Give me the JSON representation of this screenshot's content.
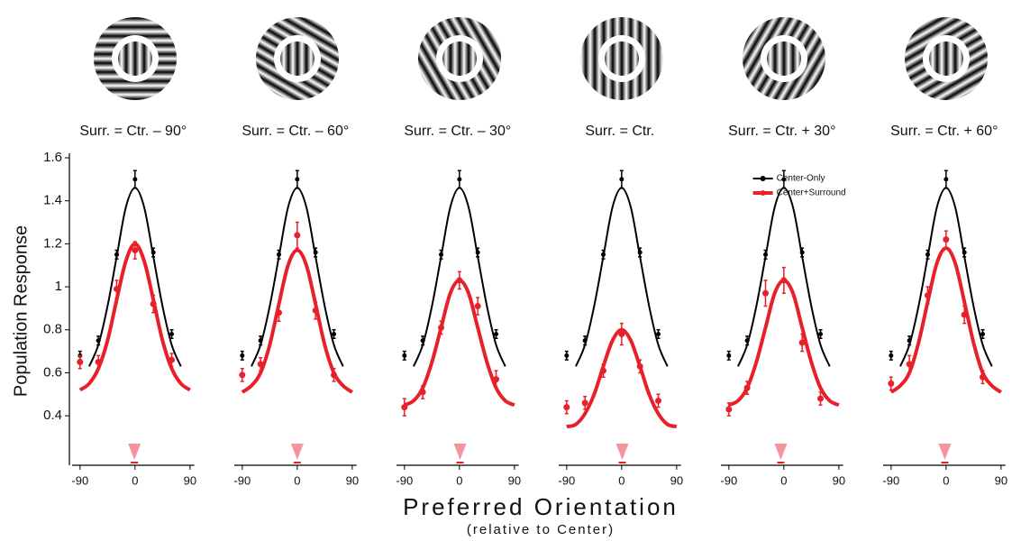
{
  "chart_data": [
    {
      "type": "line",
      "title": "Surr. = Ctr. – 90°",
      "x": [
        -90,
        -60,
        -30,
        0,
        30,
        60
      ],
      "xlim": [
        -103,
        97
      ],
      "xticks": [
        -90,
        0,
        90
      ],
      "ylim": [
        0.17,
        1.6
      ],
      "yticks": [
        0.4,
        0.6,
        0.8,
        1,
        1.2,
        1.4,
        1.6
      ],
      "series": [
        {
          "color": "#000000",
          "values": [
            0.68,
            0.75,
            1.15,
            1.5,
            1.16,
            0.78
          ],
          "errors": [
            0.02,
            0.02,
            0.02,
            0.04,
            0.02,
            0.02
          ],
          "fit_x": [
            -75,
            -60,
            -45,
            -30,
            -15,
            0,
            15,
            30,
            45,
            60,
            75
          ],
          "fit_values": [
            0.63,
            0.73,
            0.91,
            1.14,
            1.37,
            1.46,
            1.37,
            1.14,
            0.91,
            0.73,
            0.63
          ]
        },
        {
          "color": "#e8202a",
          "values": [
            0.65,
            0.65,
            0.99,
            1.17,
            0.92,
            0.66
          ],
          "errors": [
            0.03,
            0.03,
            0.04,
            0.04,
            0.04,
            0.03
          ],
          "fit_x": [
            -90,
            -75,
            -60,
            -45,
            -30,
            -15,
            0,
            15,
            30,
            45,
            60,
            75,
            90
          ],
          "fit_values": [
            0.52,
            0.55,
            0.62,
            0.75,
            0.94,
            1.12,
            1.2,
            1.12,
            0.94,
            0.75,
            0.62,
            0.55,
            0.52
          ]
        }
      ],
      "peak_marker": -1,
      "peak_color": "#f4949c"
    },
    {
      "type": "line",
      "title": "Surr. = Ctr. – 60°",
      "x": [
        -90,
        -60,
        -30,
        0,
        30,
        60
      ],
      "xlim": [
        -103,
        97
      ],
      "xticks": [
        -90,
        0,
        90
      ],
      "ylim": [
        0.17,
        1.6
      ],
      "series": [
        {
          "color": "#000000",
          "values": [
            0.68,
            0.75,
            1.15,
            1.5,
            1.16,
            0.78
          ],
          "errors": [
            0.02,
            0.02,
            0.02,
            0.04,
            0.02,
            0.02
          ],
          "fit_x": [
            -75,
            -60,
            -45,
            -30,
            -15,
            0,
            15,
            30,
            45,
            60,
            75
          ],
          "fit_values": [
            0.63,
            0.73,
            0.91,
            1.14,
            1.37,
            1.46,
            1.37,
            1.14,
            0.91,
            0.73,
            0.63
          ]
        },
        {
          "color": "#e8202a",
          "values": [
            0.59,
            0.64,
            0.88,
            1.24,
            0.89,
            0.59
          ],
          "errors": [
            0.03,
            0.03,
            0.04,
            0.06,
            0.04,
            0.03
          ],
          "fit_x": [
            -90,
            -75,
            -60,
            -45,
            -30,
            -15,
            0,
            15,
            30,
            45,
            60,
            75,
            90
          ],
          "fit_values": [
            0.51,
            0.54,
            0.6,
            0.73,
            0.92,
            1.1,
            1.17,
            1.1,
            0.92,
            0.73,
            0.6,
            0.54,
            0.51
          ]
        }
      ],
      "peak_marker": 0,
      "peak_color": "#f4949c"
    },
    {
      "type": "line",
      "title": "Surr. = Ctr. – 30°",
      "x": [
        -90,
        -60,
        -30,
        0,
        30,
        60
      ],
      "xlim": [
        -103,
        97
      ],
      "xticks": [
        -90,
        0,
        90
      ],
      "ylim": [
        0.17,
        1.6
      ],
      "series": [
        {
          "color": "#000000",
          "values": [
            0.68,
            0.75,
            1.15,
            1.5,
            1.16,
            0.78
          ],
          "errors": [
            0.02,
            0.02,
            0.02,
            0.04,
            0.02,
            0.02
          ],
          "fit_x": [
            -75,
            -60,
            -45,
            -30,
            -15,
            0,
            15,
            30,
            45,
            60,
            75
          ],
          "fit_values": [
            0.63,
            0.73,
            0.91,
            1.14,
            1.37,
            1.46,
            1.37,
            1.14,
            0.91,
            0.73,
            0.63
          ]
        },
        {
          "color": "#e8202a",
          "values": [
            0.44,
            0.51,
            0.81,
            1.03,
            0.91,
            0.57
          ],
          "errors": [
            0.04,
            0.03,
            0.03,
            0.04,
            0.04,
            0.04
          ],
          "fit_x": [
            -90,
            -75,
            -60,
            -45,
            -30,
            -15,
            0,
            15,
            30,
            45,
            60,
            75,
            90
          ],
          "fit_values": [
            0.45,
            0.47,
            0.53,
            0.65,
            0.81,
            0.97,
            1.03,
            0.97,
            0.81,
            0.65,
            0.53,
            0.47,
            0.45
          ]
        }
      ],
      "peak_marker": 1,
      "peak_color": "#f4949c"
    },
    {
      "type": "line",
      "title": "Surr. = Ctr.",
      "x": [
        -90,
        -60,
        -30,
        0,
        30,
        60
      ],
      "xlim": [
        -103,
        97
      ],
      "xticks": [
        -90,
        0,
        90
      ],
      "ylim": [
        0.17,
        1.6
      ],
      "series": [
        {
          "color": "#000000",
          "values": [
            0.68,
            0.75,
            1.15,
            1.5,
            1.16,
            0.78
          ],
          "errors": [
            0.02,
            0.02,
            0.02,
            0.04,
            0.02,
            0.02
          ],
          "fit_x": [
            -75,
            -60,
            -45,
            -30,
            -15,
            0,
            15,
            30,
            45,
            60,
            75
          ],
          "fit_values": [
            0.63,
            0.73,
            0.91,
            1.14,
            1.37,
            1.46,
            1.37,
            1.14,
            0.91,
            0.73,
            0.63
          ]
        },
        {
          "color": "#e8202a",
          "values": [
            0.44,
            0.46,
            0.61,
            0.78,
            0.63,
            0.47
          ],
          "errors": [
            0.03,
            0.03,
            0.03,
            0.05,
            0.03,
            0.03
          ],
          "fit_x": [
            -90,
            -75,
            -60,
            -45,
            -30,
            -15,
            0,
            15,
            30,
            45,
            60,
            75,
            90
          ],
          "fit_values": [
            0.35,
            0.36,
            0.41,
            0.5,
            0.63,
            0.75,
            0.8,
            0.75,
            0.63,
            0.5,
            0.41,
            0.36,
            0.35
          ]
        }
      ],
      "peak_marker": 1,
      "peak_color": "#f4949c"
    },
    {
      "type": "line",
      "title": "Surr. = Ctr. + 30°",
      "x": [
        -90,
        -60,
        -30,
        0,
        30,
        60
      ],
      "xlim": [
        -103,
        97
      ],
      "xticks": [
        -90,
        0,
        90
      ],
      "ylim": [
        0.17,
        1.6
      ],
      "legend": "upper right",
      "series": [
        {
          "name": "Center-Only",
          "color": "#000000",
          "values": [
            0.68,
            0.75,
            1.15,
            1.5,
            1.16,
            0.78
          ],
          "errors": [
            0.02,
            0.02,
            0.02,
            0.04,
            0.02,
            0.02
          ],
          "fit_x": [
            -75,
            -60,
            -45,
            -30,
            -15,
            0,
            15,
            30,
            45,
            60,
            75
          ],
          "fit_values": [
            0.63,
            0.73,
            0.91,
            1.14,
            1.37,
            1.46,
            1.37,
            1.14,
            0.91,
            0.73,
            0.63
          ]
        },
        {
          "name": "Center+Surround",
          "color": "#e8202a",
          "values": [
            0.43,
            0.53,
            0.97,
            1.03,
            0.74,
            0.48
          ],
          "errors": [
            0.03,
            0.03,
            0.06,
            0.06,
            0.04,
            0.03
          ],
          "fit_x": [
            -90,
            -75,
            -60,
            -45,
            -30,
            -15,
            0,
            15,
            30,
            45,
            60,
            75,
            90
          ],
          "fit_values": [
            0.45,
            0.47,
            0.53,
            0.65,
            0.81,
            0.97,
            1.03,
            0.97,
            0.81,
            0.65,
            0.53,
            0.47,
            0.45
          ]
        }
      ],
      "peak_marker": -5,
      "peak_color": "#f4949c"
    },
    {
      "type": "line",
      "title": "Surr. = Ctr. + 60°",
      "x": [
        -90,
        -60,
        -30,
        0,
        30,
        60
      ],
      "xlim": [
        -103,
        97
      ],
      "xticks": [
        -90,
        0,
        90
      ],
      "ylim": [
        0.17,
        1.6
      ],
      "series": [
        {
          "color": "#000000",
          "values": [
            0.68,
            0.75,
            1.15,
            1.5,
            1.16,
            0.78
          ],
          "errors": [
            0.02,
            0.02,
            0.02,
            0.04,
            0.02,
            0.02
          ],
          "fit_x": [
            -75,
            -60,
            -45,
            -30,
            -15,
            0,
            15,
            30,
            45,
            60,
            75
          ],
          "fit_values": [
            0.63,
            0.73,
            0.91,
            1.14,
            1.37,
            1.46,
            1.37,
            1.14,
            0.91,
            0.73,
            0.63
          ]
        },
        {
          "color": "#e8202a",
          "values": [
            0.55,
            0.64,
            0.96,
            1.22,
            0.87,
            0.58
          ],
          "errors": [
            0.03,
            0.04,
            0.04,
            0.04,
            0.04,
            0.03
          ],
          "fit_x": [
            -90,
            -75,
            -60,
            -45,
            -30,
            -15,
            0,
            15,
            30,
            45,
            60,
            75,
            90
          ],
          "fit_values": [
            0.51,
            0.54,
            0.6,
            0.74,
            0.93,
            1.11,
            1.18,
            1.11,
            0.93,
            0.74,
            0.6,
            0.54,
            0.51
          ]
        }
      ],
      "peak_marker": -2,
      "peak_color": "#f4949c"
    }
  ],
  "x_label": "Preferred Orientation",
  "x_sublabel": "(relative to Center)",
  "y_label": "Population Response"
}
